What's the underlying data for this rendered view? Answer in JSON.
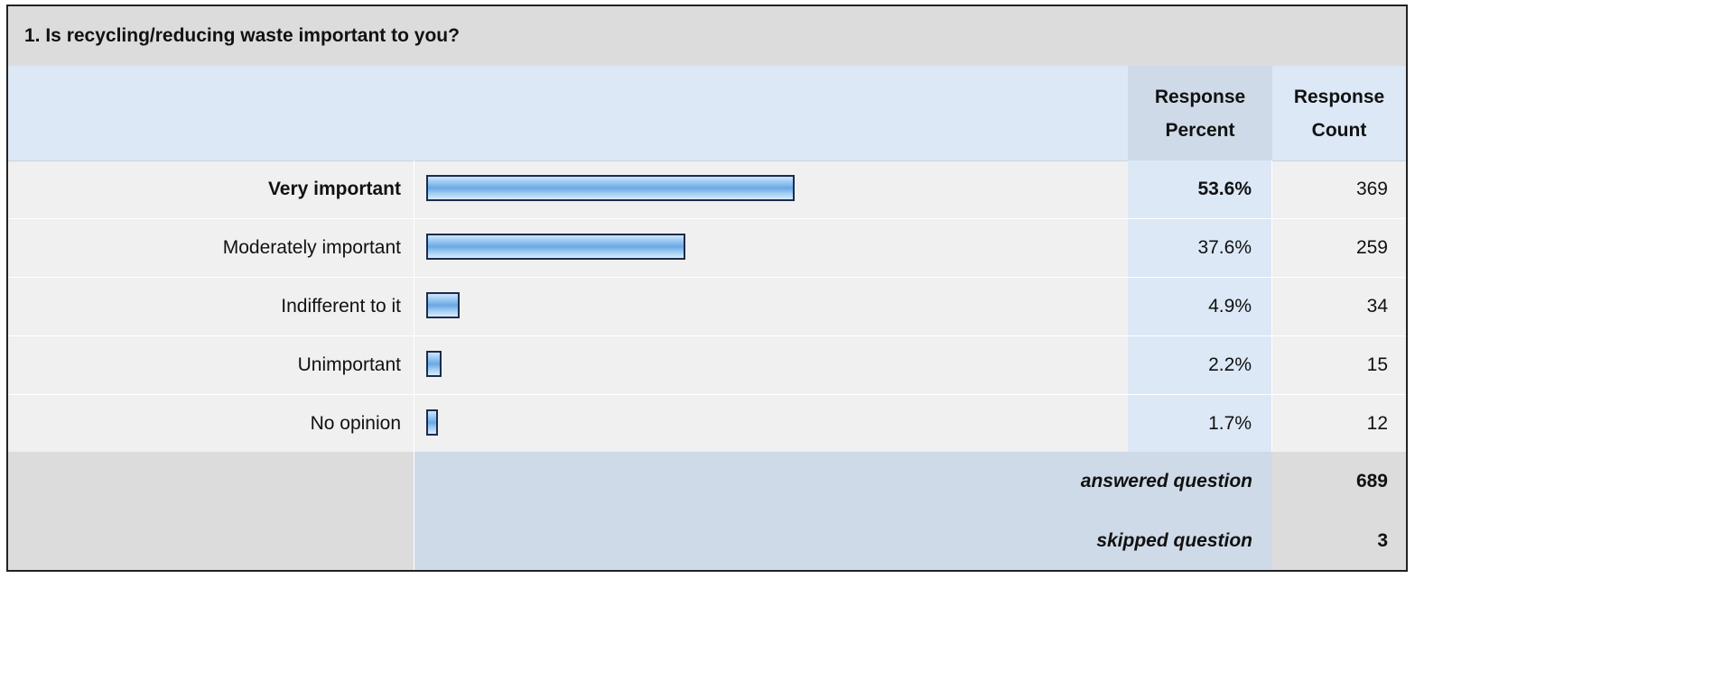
{
  "question": "1. Is recycling/reducing waste important to you?",
  "headers": {
    "percent_line1": "Response",
    "percent_line2": "Percent",
    "count_line1": "Response",
    "count_line2": "Count"
  },
  "chart_data": {
    "type": "bar",
    "orientation": "horizontal",
    "title": "1. Is recycling/reducing waste important to you?",
    "categories": [
      "Very important",
      "Moderately important",
      "Indifferent to it",
      "Unimportant",
      "No opinion"
    ],
    "values": [
      53.6,
      37.6,
      4.9,
      2.2,
      1.7
    ],
    "percent_labels": [
      "53.6%",
      "37.6%",
      "4.9%",
      "2.2%",
      "1.7%"
    ],
    "counts": [
      "369",
      "259",
      "34",
      "15",
      "12"
    ],
    "highlighted_category": "Very important",
    "grid": false
  },
  "summary": {
    "answered_label": "answered question",
    "answered_value": "689",
    "skipped_label": "skipped question",
    "skipped_value": "3"
  },
  "colors": {
    "bar_fill": "#6aa8e4",
    "bar_border": "#1b2c4d",
    "header_bg": "#dce8f6",
    "row_bg": "#f0f0f0"
  }
}
